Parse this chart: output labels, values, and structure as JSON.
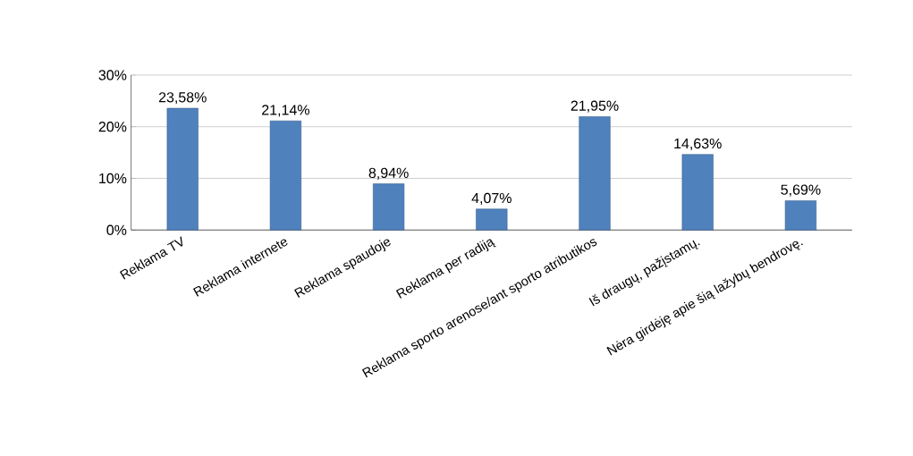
{
  "chart_data": {
    "type": "bar",
    "categories": [
      "Reklama TV",
      "Reklama internete",
      "Reklama spaudoje",
      "Reklama per radiją",
      "Reklama sporto arenose/ant sporto atributikos",
      "Iš draugų, pažįstamų.",
      "Nėra girdėję apie šią lažybų bendrovę."
    ],
    "values": [
      23.58,
      21.14,
      8.94,
      4.07,
      21.95,
      14.63,
      5.69
    ],
    "value_labels": [
      "23,58%",
      "21,14%",
      "8,94%",
      "4,07%",
      "21,95%",
      "14,63%",
      "5,69%"
    ],
    "color": "#4f81bd",
    "ylim": [
      0,
      30
    ],
    "yticks": [
      {
        "value": 0,
        "label": "0%"
      },
      {
        "value": 10,
        "label": "10%"
      },
      {
        "value": 20,
        "label": "20%"
      },
      {
        "value": 30,
        "label": "30%"
      }
    ],
    "grid": "y"
  }
}
